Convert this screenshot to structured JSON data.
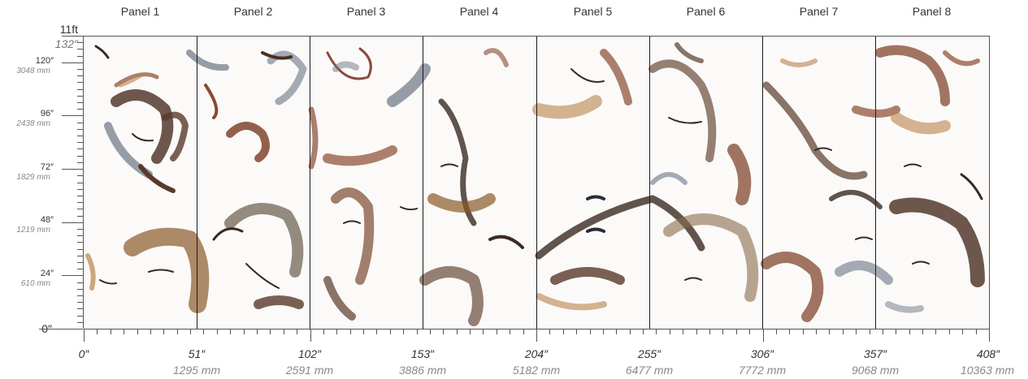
{
  "panels": [
    "Panel 1",
    "Panel 2",
    "Panel 3",
    "Panel 4",
    "Panel 5",
    "Panel 6",
    "Panel 7",
    "Panel 8"
  ],
  "height": {
    "feet_label": "11ft",
    "top_inches": "132″",
    "zero_label": "0″"
  },
  "y_ticks": [
    {
      "inches": "120″",
      "mm": "3048 mm"
    },
    {
      "inches": "96″",
      "mm": "2438 mm"
    },
    {
      "inches": "72″",
      "mm": "1829 mm"
    },
    {
      "inches": "48″",
      "mm": "1219 mm"
    },
    {
      "inches": "24″",
      "mm": "610 mm"
    }
  ],
  "x_ticks": [
    {
      "inches": "0″",
      "mm": ""
    },
    {
      "inches": "51″",
      "mm": "1295 mm"
    },
    {
      "inches": "102″",
      "mm": "2591 mm"
    },
    {
      "inches": "153″",
      "mm": "3886 mm"
    },
    {
      "inches": "204″",
      "mm": "5182 mm"
    },
    {
      "inches": "255″",
      "mm": "6477 mm"
    },
    {
      "inches": "306″",
      "mm": "7772 mm"
    },
    {
      "inches": "357″",
      "mm": "9068 mm"
    },
    {
      "inches": "408″",
      "mm": "10363 mm"
    }
  ],
  "artwork": {
    "icon": "brushstroke-faces-mural",
    "colors": {
      "dark_brown": "#4a2e22",
      "rust": "#8a4a30",
      "ochre": "#b9824a",
      "tan": "#cfae8a",
      "slate": "#6b7585",
      "blush": "#d8b7a8"
    }
  }
}
